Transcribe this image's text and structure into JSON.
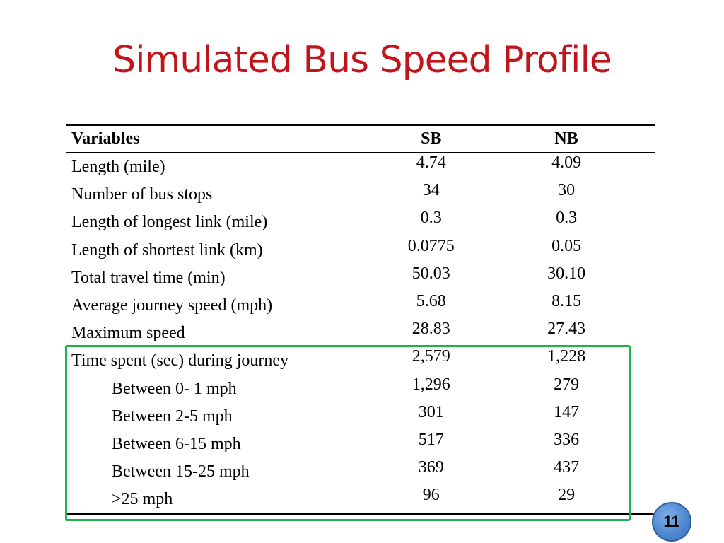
{
  "slide": {
    "title": "Simulated Bus Speed Profile",
    "page_number": "11"
  },
  "table": {
    "headers": {
      "variables": "Variables",
      "sb": "SB",
      "nb": "NB"
    },
    "rows": [
      {
        "label": "Length (mile)",
        "sb": "4.74",
        "nb": "4.09",
        "indent": false
      },
      {
        "label": "Number of bus stops",
        "sb": "34",
        "nb": "30",
        "indent": false
      },
      {
        "label": "Length of longest link (mile)",
        "sb": "0.3",
        "nb": "0.3",
        "indent": false
      },
      {
        "label": "Length of shortest link (km)",
        "sb": "0.0775",
        "nb": "0.05",
        "indent": false
      },
      {
        "label": "Total travel time (min)",
        "sb": "50.03",
        "nb": "30.10",
        "indent": false
      },
      {
        "label": "Average journey speed (mph)",
        "sb": "5.68",
        "nb": "8.15",
        "indent": false
      },
      {
        "label": "Maximum speed",
        "sb": "28.83",
        "nb": "27.43",
        "indent": false
      },
      {
        "label": "Time spent (sec) during journey",
        "sb": "2,579",
        "nb": "1,228",
        "indent": false
      },
      {
        "label": "Between 0- 1 mph",
        "sb": "1,296",
        "nb": "279",
        "indent": true
      },
      {
        "label": "Between 2-5 mph",
        "sb": "301",
        "nb": "147",
        "indent": true
      },
      {
        "label": "Between 6-15 mph",
        "sb": "517",
        "nb": "336",
        "indent": true
      },
      {
        "label": "Between 15-25 mph",
        "sb": "369",
        "nb": "437",
        "indent": true
      },
      {
        "label": ">25 mph",
        "sb": "96",
        "nb": "29",
        "indent": true
      }
    ]
  },
  "colors": {
    "title": "#c0161b",
    "highlight_border": "#22b04c",
    "badge_fill": "#4f89d1"
  }
}
